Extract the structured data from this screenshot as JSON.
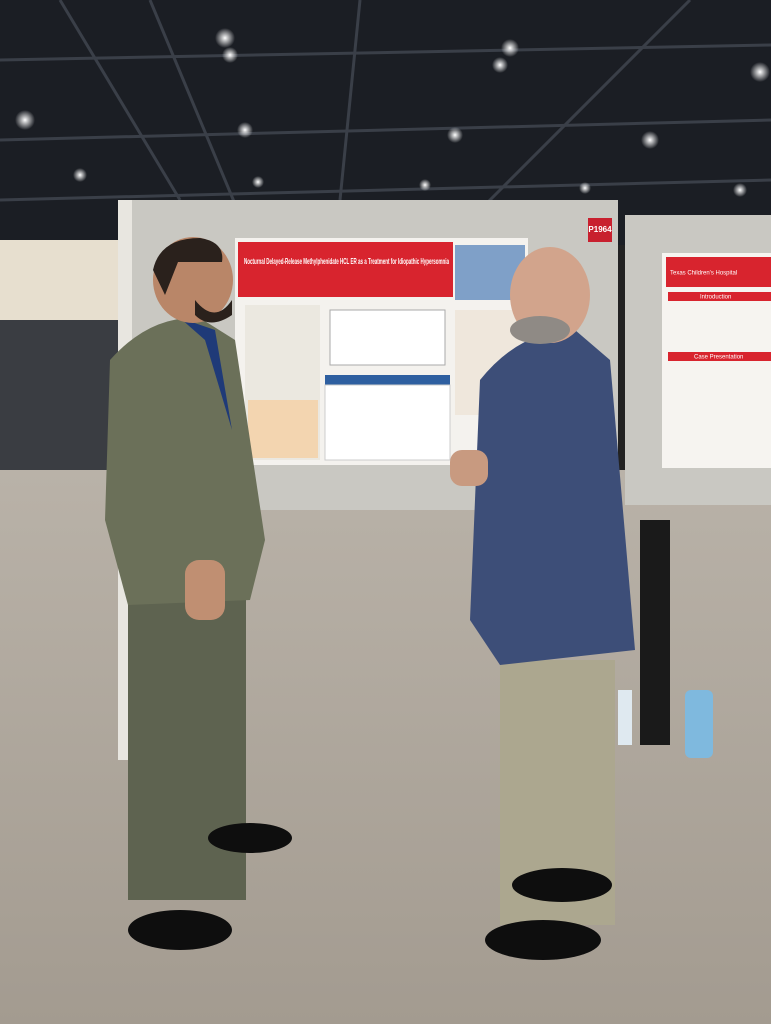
{
  "poster": {
    "board_number": "P1964",
    "title": "Nocturnal Delayed-Release Methylphenidate HCL ER as a Treatment for Idiopathic Hypersomnia"
  },
  "right_poster": {
    "institution": "Texas Children's Hospital",
    "sections": [
      "Introduction",
      "Case Presentation"
    ]
  }
}
